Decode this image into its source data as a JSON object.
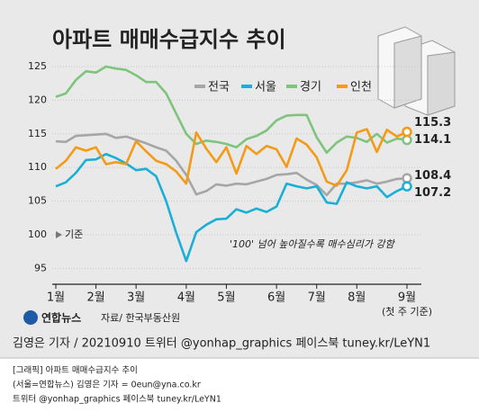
{
  "chart_data": {
    "type": "line",
    "title": "아파트 매매수급지수 추이",
    "source": "자료/ 한국부동산원",
    "logo": "연합뉴스",
    "annotations": [
      "기준",
      "'100' 넘어 높아질수록 매수심리가 강함",
      "(첫 주 기준)"
    ],
    "x": [
      0,
      1,
      2,
      3,
      4,
      5,
      6,
      7,
      8,
      9,
      10,
      11,
      12,
      13,
      14,
      15,
      16,
      17,
      18,
      19,
      20,
      21,
      22,
      23,
      24,
      25,
      26,
      27,
      28,
      29,
      30,
      31,
      32,
      33,
      34,
      35
    ],
    "xlim": [
      0,
      35
    ],
    "xticks": [
      {
        "value": 0,
        "label": "1월"
      },
      {
        "value": 4,
        "label": "2월"
      },
      {
        "value": 8,
        "label": "3월"
      },
      {
        "value": 13,
        "label": "4월"
      },
      {
        "value": 17,
        "label": "5월"
      },
      {
        "value": 22,
        "label": "6월"
      },
      {
        "value": 26,
        "label": "7월"
      },
      {
        "value": 30,
        "label": "8월"
      },
      {
        "value": 35,
        "label": "9월"
      }
    ],
    "ylim": [
      93,
      126
    ],
    "yticks": [
      95,
      100,
      105,
      110,
      115,
      120,
      125
    ],
    "grid": true,
    "legend": "top",
    "series": [
      {
        "name": "전국",
        "color": "#a6a6a6",
        "values": [
          113.9,
          113.8,
          114.7,
          114.8,
          114.9,
          115,
          114.4,
          114.6,
          114.1,
          113.6,
          113,
          112.5,
          111,
          108.9,
          106,
          106.5,
          107.5,
          107.3,
          107.6,
          107.5,
          107.9,
          108.3,
          108.9,
          109,
          109.2,
          108.2,
          107.4,
          105.9,
          107.6,
          107.6,
          107.8,
          108.1,
          107.6,
          107.9,
          108.3,
          108.4
        ]
      },
      {
        "name": "서울",
        "color": "#1aafd6",
        "values": [
          107.2,
          107.8,
          109.2,
          111.1,
          111.2,
          112,
          111.4,
          110.6,
          109.6,
          109.8,
          108.7,
          105,
          100.3,
          96.1,
          100.4,
          101.5,
          102.3,
          102.4,
          103.8,
          103.3,
          103.9,
          103.4,
          104.2,
          107.6,
          107.2,
          106.9,
          107.2,
          104.8,
          104.6,
          107.8,
          107.2,
          106.9,
          107.2,
          105.6,
          106.5,
          107.2
        ]
      },
      {
        "name": "경기",
        "color": "#7ec47c",
        "values": [
          120.5,
          121,
          123,
          124.3,
          124.1,
          125,
          124.7,
          124.5,
          123.7,
          122.7,
          122.7,
          121,
          118,
          115,
          113.5,
          114,
          113.8,
          113.5,
          113,
          114.2,
          114.7,
          115.5,
          117,
          117.7,
          117.8,
          117.8,
          114.5,
          112.2,
          113.7,
          114.6,
          114.4,
          113.8,
          115,
          113.7,
          114.3,
          114.1
        ]
      },
      {
        "name": "인천",
        "color": "#f39a17",
        "values": [
          109.8,
          111,
          113,
          112.5,
          113,
          110.5,
          110.8,
          110.5,
          113.9,
          112.4,
          111,
          110.5,
          109.4,
          107.6,
          115.2,
          112.8,
          110.8,
          113,
          109.1,
          113.2,
          112,
          113.2,
          112.7,
          110.1,
          114.3,
          113.4,
          111.5,
          107.9,
          107.3,
          109.6,
          115.2,
          115.7,
          112.3,
          115.6,
          114.6,
          115.3
        ]
      }
    ]
  },
  "credit": "김영은 기자 / 20210910  트위터 @yonhap_graphics  페이스북 tuney.kr/LeYN1",
  "footer_lines": [
    "[그래픽] 아파트 매매수급지수 추이",
    "(서울=연합뉴스) 김영은 기자 = 0eun@yna.co.kr",
    "트위터 @yonhap_graphics 페이스북 tuney.kr/LeYN1"
  ]
}
